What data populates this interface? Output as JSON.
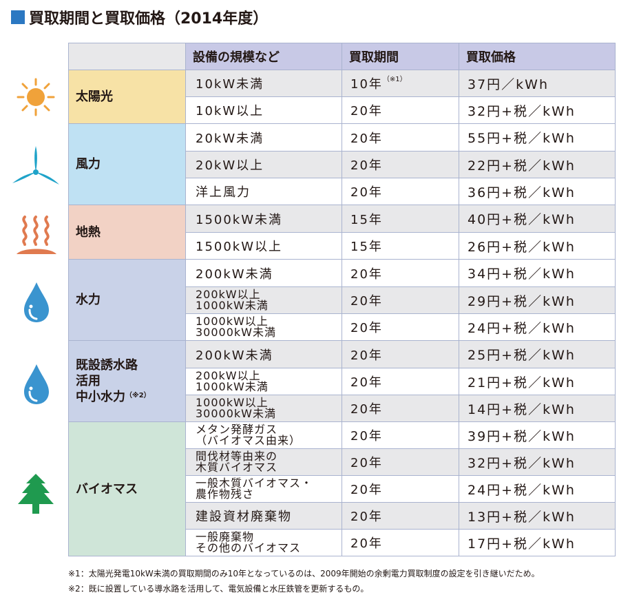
{
  "title": "買取期間と買取価格（2014年度）",
  "headers": [
    "設備の規模など",
    "買取期間",
    "買取価格"
  ],
  "categories": {
    "solar": {
      "label": "太陽光",
      "icon": "sun-icon"
    },
    "wind": {
      "label": "風力",
      "icon": "wind-turbine-icon"
    },
    "geothermal": {
      "label": "地熱",
      "icon": "hot-spring-icon"
    },
    "hydro": {
      "label": "水力",
      "icon": "water-drop-icon"
    },
    "hydro2": {
      "label_1": "既設誘水路",
      "label_2": "活用",
      "label_3": "中小水力",
      "note": "（※2）",
      "icon": "water-drop-icon"
    },
    "biomass": {
      "label": "バイオマス",
      "icon": "tree-icon"
    }
  },
  "rows": [
    {
      "scale": "10kW未満",
      "period": "10年",
      "period_note": "（※1）",
      "price": "37円／kWh"
    },
    {
      "scale": "10kW以上",
      "period": "20年",
      "price": "32円+税／kWh"
    },
    {
      "scale": "20kW未満",
      "period": "20年",
      "price": "55円+税／kWh"
    },
    {
      "scale": "20kW以上",
      "period": "20年",
      "price": "22円+税／kWh"
    },
    {
      "scale": "洋上風力",
      "period": "20年",
      "price": "36円+税／kWh"
    },
    {
      "scale": "1500kW未満",
      "period": "15年",
      "price": "40円+税／kWh"
    },
    {
      "scale": "1500kW以上",
      "period": "15年",
      "price": "26円+税／kWh"
    },
    {
      "scale": "200kW未満",
      "period": "20年",
      "price": "34円+税／kWh"
    },
    {
      "scale_1": "200kW以上",
      "scale_2": "1000kW未満",
      "period": "20年",
      "price": "29円+税／kWh"
    },
    {
      "scale_1": "1000kW以上",
      "scale_2": "30000kW未満",
      "period": "20年",
      "price": "24円+税／kWh"
    },
    {
      "scale": "200kW未満",
      "period": "20年",
      "price": "25円+税／kWh"
    },
    {
      "scale_1": "200kW以上",
      "scale_2": "1000kW未満",
      "period": "20年",
      "price": "21円+税／kWh"
    },
    {
      "scale_1": "1000kW以上",
      "scale_2": "30000kW未満",
      "period": "20年",
      "price": "14円+税／kWh"
    },
    {
      "scale_1": "メタン発酵ガス",
      "scale_2": "（バイオマス由来）",
      "period": "20年",
      "price": "39円+税／kWh"
    },
    {
      "scale_1": "間伐材等由来の",
      "scale_2": "木質バイオマス",
      "period": "20年",
      "price": "32円+税／kWh"
    },
    {
      "scale_1": "一般木質バイオマス・",
      "scale_2": "農作物残さ",
      "period": "20年",
      "price": "24円+税／kWh"
    },
    {
      "scale": "建設資材廃棄物",
      "period": "20年",
      "price": "13円+税／kWh"
    },
    {
      "scale_1": "一般廃棄物",
      "scale_2": "その他のバイオマス",
      "period": "20年",
      "price": "17円+税／kWh"
    }
  ],
  "notes": [
    "※1：太陽光発電10kW未満の買取期間のみ10年となっているのは、2009年開始の余剰電力買取制度の設定を引き継いだため。",
    "※2：既に設置している導水路を活用して、電気設備と水圧鉄管を更新するもの。"
  ],
  "colors": {
    "title_square": "#2b78c2",
    "header": "#c8c9e6",
    "solar": "#f7e2a6",
    "wind": "#bfe1f3",
    "geothermal": "#f2d2c5",
    "hydro": "#c9d2e8",
    "biomass": "#cfe5d8",
    "sun_icon": "#f0a23a",
    "wind_icon": "#1fa3c9",
    "geo_icon": "#e07a4f",
    "drop_icon": "#3a94cf",
    "tree_icon": "#1f9a4f"
  }
}
